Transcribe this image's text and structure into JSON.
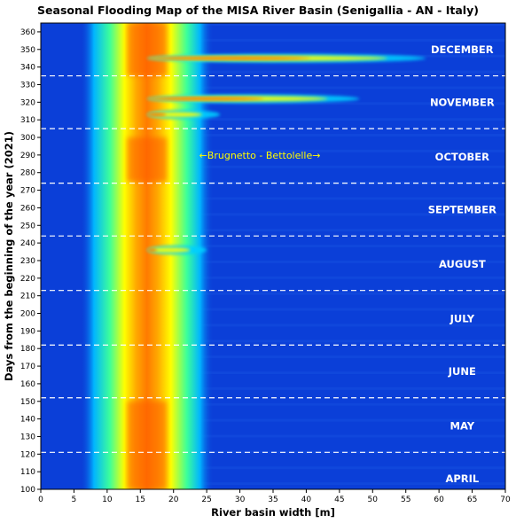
{
  "chart_data": {
    "type": "heatmap",
    "title": "Seasonal Flooding Map of the MISA River Basin (Senigallia - AN - Italy)",
    "xlabel": "River basin width [m]",
    "ylabel": "Days from the beginning of the year (2021)",
    "xlim": [
      0,
      70
    ],
    "ylim": [
      100,
      365
    ],
    "x_ticks": [
      "0",
      "5",
      "10",
      "15",
      "20",
      "25",
      "30",
      "35",
      "40",
      "45",
      "50",
      "55",
      "60",
      "65",
      "70"
    ],
    "y_ticks": [
      "100",
      "110",
      "120",
      "130",
      "140",
      "150",
      "160",
      "170",
      "180",
      "190",
      "200",
      "210",
      "220",
      "230",
      "240",
      "250",
      "260",
      "270",
      "280",
      "290",
      "300",
      "310",
      "320",
      "330",
      "340",
      "350",
      "360"
    ],
    "month_boundaries": [
      121,
      152,
      182,
      213,
      244,
      274,
      305,
      335
    ],
    "months": [
      {
        "label": "APRIL",
        "day": 106
      },
      {
        "label": "MAY",
        "day": 136
      },
      {
        "label": "JUNE",
        "day": 167
      },
      {
        "label": "JULY",
        "day": 197
      },
      {
        "label": "AUGUST",
        "day": 228
      },
      {
        "label": "SEPTEMBER",
        "day": 259
      },
      {
        "label": "OCTOBER",
        "day": 289
      },
      {
        "label": "NOVEMBER",
        "day": 320
      },
      {
        "label": "DECEMBER",
        "day": 350
      }
    ],
    "annotation": {
      "text": "←Brugnetto - Bettolelle→",
      "x": 33,
      "day": 290
    },
    "channel": {
      "center_x_m": 16,
      "core_days": [
        100,
        365
      ],
      "peak_zones_days": [
        [
          100,
          150
        ],
        [
          275,
          300
        ],
        [
          335,
          365
        ]
      ]
    },
    "flood_events": [
      {
        "day": 345,
        "max_width_m": 58
      },
      {
        "day": 322,
        "max_width_m": 48
      },
      {
        "day": 313,
        "max_width_m": 27
      },
      {
        "day": 236,
        "max_width_m": 25
      }
    ],
    "colormap": "jet",
    "background_color": "#0b3fd8"
  }
}
